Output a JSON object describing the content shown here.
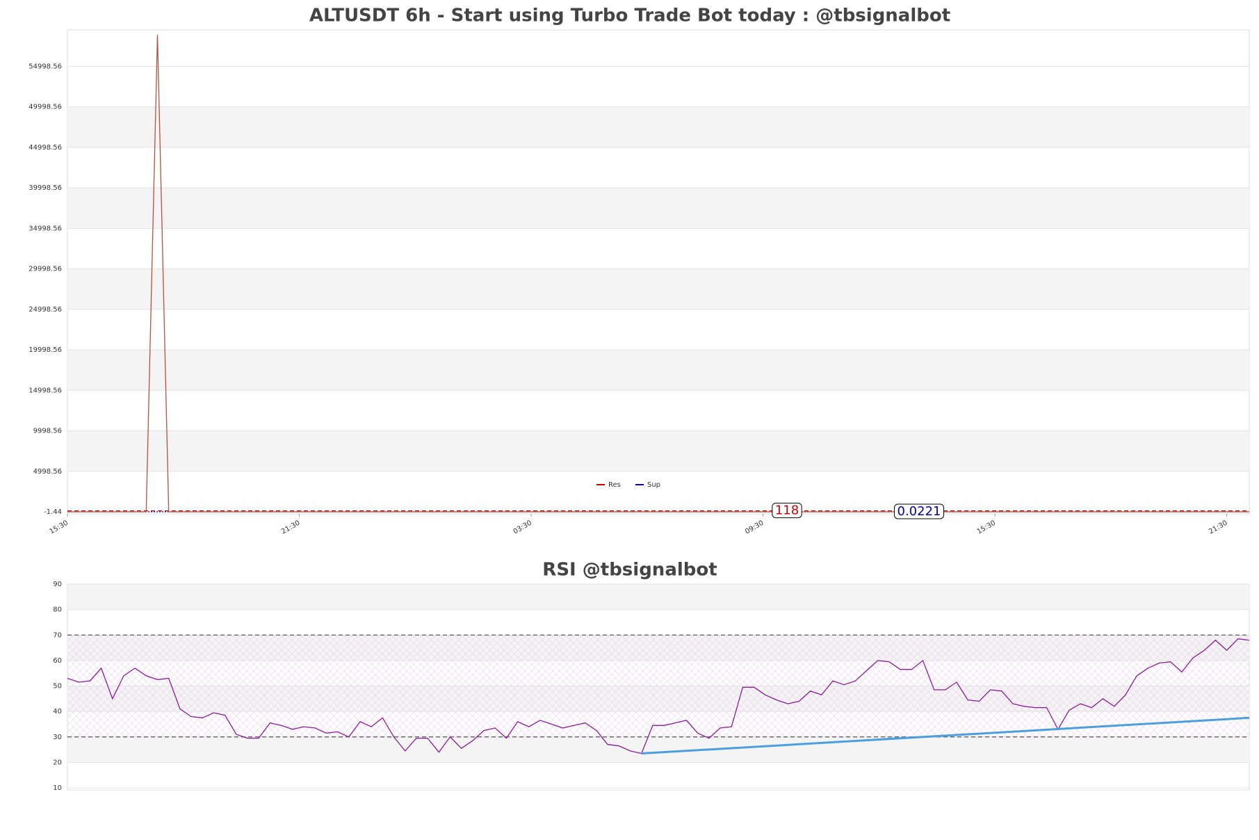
{
  "chart_data": [
    {
      "type": "line",
      "title": "ALTUSDT 6h - Start using Turbo Trade Bot today : @tbsignalbot",
      "color": "#b5523b",
      "values": [
        0.0221,
        0.0221,
        0.0222,
        0.0221,
        0.022,
        0.0221,
        0.0222,
        0.0221,
        58900,
        0.0222,
        0.0221,
        0.0221,
        0.022,
        0.0221,
        0.0221,
        0.0222,
        0.0221,
        0.0221,
        0.022,
        0.0221,
        0.0221,
        0.0222,
        0.0221,
        0.0221,
        0.022,
        0.0221,
        0.0221,
        0.0222,
        0.0221,
        0.0221,
        0.022,
        0.0221,
        0.0221,
        0.0222,
        0.0221,
        0.0221,
        0.022,
        0.0221,
        0.0221,
        0.0222,
        0.0221,
        0.0221,
        0.022,
        0.0221,
        0.0221,
        0.0222,
        0.0221,
        0.0221,
        0.022,
        0.0221,
        0.0221,
        0.0222,
        0.0221,
        0.0221,
        0.022,
        0.0221,
        0.0221,
        0.0222,
        0.0221,
        0.0221,
        0.022,
        0.0221,
        0.0221,
        0.0222,
        0.0221,
        0.0221,
        0.022,
        0.0221,
        0.0221,
        0.0222,
        0.0221,
        0.0221,
        0.022,
        0.0221,
        0.0221,
        0.0222,
        0.0221,
        0.0221,
        0.022,
        0.0221,
        0.0221,
        0.0222,
        0.0221,
        0.0221,
        0.022,
        0.0221,
        0.0221,
        0.0222,
        0.0221,
        0.0221,
        0.022,
        0.0221,
        0.0221,
        0.0222,
        0.0221,
        0.0221,
        0.022,
        0.0221,
        0.0221,
        0.0222,
        0.0221,
        0.0221,
        0.022,
        0.0221,
        0.0221,
        0.0222
      ],
      "xlim": [
        0,
        105
      ],
      "xticks": [
        {
          "value": 0,
          "label": "15:30"
        },
        {
          "value": 20.6,
          "label": "21:30"
        },
        {
          "value": 41.2,
          "label": "03:30"
        },
        {
          "value": 61.8,
          "label": "09:30"
        },
        {
          "value": 82.4,
          "label": "15:30"
        },
        {
          "value": 103,
          "label": "21:30"
        }
      ],
      "ylim": [
        -1.44,
        59500
      ],
      "yticks": [
        -1.44,
        4998.56,
        9998.56,
        14998.56,
        19998.56,
        24998.56,
        29998.56,
        34998.56,
        39998.56,
        44998.56,
        49998.56,
        54998.56
      ],
      "lines": [
        {
          "name": "Res",
          "value": 118,
          "color": "#cc0000"
        },
        {
          "name": "Sup",
          "value": 0.0221,
          "color": "#0000aa"
        }
      ],
      "grid": true
    },
    {
      "type": "line",
      "title": "RSI @tbsignalbot",
      "color": "#8b1a9b",
      "values": [
        53,
        51.5,
        52,
        57,
        45,
        54,
        57,
        54,
        52.5,
        53,
        41,
        38,
        37.5,
        39.5,
        38.5,
        31,
        29.5,
        29.5,
        35.5,
        34.5,
        33,
        34,
        33.5,
        31.5,
        32,
        30,
        36,
        34,
        37.5,
        30,
        24.5,
        29.5,
        29.5,
        24,
        30,
        25.5,
        28.5,
        32.5,
        33.5,
        29.5,
        36,
        34,
        36.5,
        35,
        33.5,
        34.5,
        35.5,
        32.5,
        27,
        26.5,
        24.5,
        23.5,
        34.5,
        34.5,
        35.5,
        36.5,
        31.5,
        29.5,
        33.5,
        34,
        49.5,
        49.5,
        46.5,
        44.5,
        43,
        44,
        48,
        46.5,
        52,
        50.5,
        52,
        56,
        60,
        59.5,
        56.5,
        56.5,
        60,
        48.5,
        48.5,
        51.5,
        44.5,
        44,
        48.5,
        48,
        43,
        42,
        41.5,
        41.5,
        33,
        40.5,
        43,
        41.5,
        45,
        42,
        46.5,
        54,
        57,
        59,
        59.5,
        55.5,
        61,
        64,
        68,
        64,
        68.5,
        68
      ],
      "xlim": [
        0,
        105
      ],
      "ylim": [
        10,
        90
      ],
      "yticks": [
        10,
        20,
        30,
        40,
        50,
        60,
        70,
        80,
        90
      ],
      "hlines": [
        70,
        30
      ],
      "trend": {
        "x": [
          51,
          105
        ],
        "values": [
          23.5,
          37.5
        ],
        "color": "#4a9fe0"
      },
      "grid": true
    }
  ]
}
